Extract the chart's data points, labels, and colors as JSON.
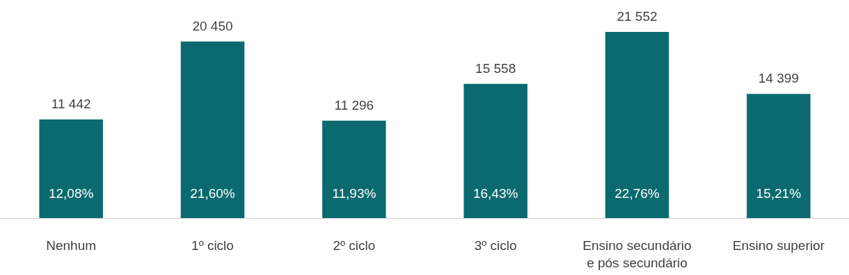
{
  "chart_data": {
    "type": "bar",
    "categories": [
      "Nenhum",
      "1º ciclo",
      "2º ciclo",
      "3º ciclo",
      "Ensino secundário\ne pós secundário",
      "Ensino superior"
    ],
    "values": [
      11442,
      20450,
      11296,
      15558,
      21552,
      14399
    ],
    "value_labels": [
      "11 442",
      "20 450",
      "11 296",
      "15 558",
      "21 552",
      "14 399"
    ],
    "color": "#0b6a70",
    "annotations": [
      "12,08%",
      "21,60%",
      "11,93%",
      "16,43%",
      "22,76%",
      "15,21%"
    ]
  }
}
